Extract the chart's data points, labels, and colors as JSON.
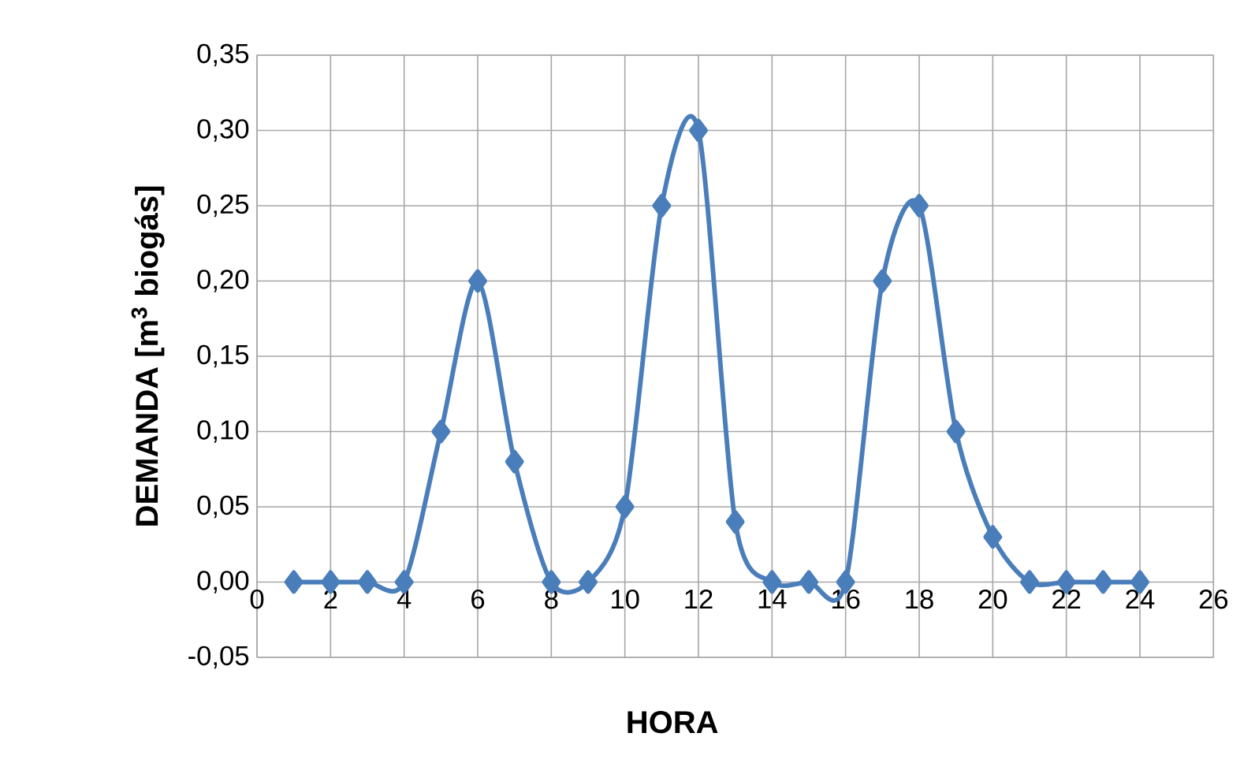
{
  "chart_data": {
    "type": "line",
    "xlabel": "HORA",
    "ylabel": "DEMANDA [m$^{3}$ biogás]",
    "x": [
      1,
      2,
      3,
      4,
      5,
      6,
      7,
      8,
      9,
      10,
      11,
      12,
      13,
      14,
      15,
      16,
      17,
      18,
      19,
      20,
      21,
      22,
      23,
      24
    ],
    "series": [
      {
        "color": "#4a7ebb",
        "values": [
          0,
          0,
          0,
          0,
          0.1,
          0.2,
          0.08,
          0,
          0,
          0.05,
          0.25,
          0.3,
          0.04,
          0,
          0,
          0,
          0.2,
          0.25,
          0.1,
          0.03,
          0,
          0,
          0,
          0
        ]
      }
    ],
    "xlim": [
      0,
      26
    ],
    "xticks": [
      0,
      2,
      4,
      6,
      8,
      10,
      12,
      14,
      16,
      18,
      20,
      22,
      24,
      26
    ],
    "ylim": [
      -0.05,
      0.35
    ],
    "yticks": [
      {
        "value": -0.05,
        "label": "-0,05"
      },
      {
        "value": 0,
        "label": "0,00"
      },
      {
        "value": 0.05,
        "label": "0,05"
      },
      {
        "value": 0.1,
        "label": "0,10"
      },
      {
        "value": 0.15,
        "label": "0,15"
      },
      {
        "value": 0.2,
        "label": "0,20"
      },
      {
        "value": 0.25,
        "label": "0,25"
      },
      {
        "value": 0.3,
        "label": "0,30"
      },
      {
        "value": 0.35,
        "label": "0,35"
      }
    ],
    "grid": true,
    "marker": "diamond",
    "line_style": "solid"
  }
}
